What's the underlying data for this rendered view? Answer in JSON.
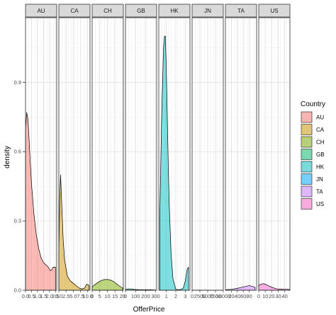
{
  "chart_data": {
    "type": "area",
    "kind": "faceted density plot",
    "xlabel": "OfferPrice",
    "ylabel": "density",
    "ylim": [
      0,
      1.18
    ],
    "y_ticks": [
      0.0,
      0.3,
      0.6,
      0.9
    ],
    "y_tick_labels": [
      "0.0",
      "0.3",
      "0.6",
      "0.9"
    ],
    "grid": true,
    "legend": {
      "title": "Country",
      "placement": "right",
      "entries": [
        "AU",
        "CA",
        "CH",
        "GB",
        "HK",
        "JN",
        "TA",
        "US"
      ]
    },
    "facets": [
      {
        "name": "AU",
        "color": "#F8766D",
        "xlim": [
          0,
          2.6
        ],
        "x_ticks": [
          0,
          0.5,
          1,
          1.5,
          2,
          2.5
        ],
        "x_tick_labels": [
          "0.0",
          "0.5",
          "1.0",
          "1.5",
          "2.0",
          "2.5"
        ],
        "x": [
          0,
          0.1,
          0.2,
          0.3,
          0.4,
          0.5,
          0.7,
          0.9,
          1.1,
          1.3,
          1.5,
          1.7,
          1.9,
          2.0,
          2.1,
          2.2,
          2.3,
          2.4,
          2.5
        ],
        "y": [
          0.7,
          0.77,
          0.74,
          0.65,
          0.55,
          0.46,
          0.33,
          0.24,
          0.18,
          0.14,
          0.12,
          0.11,
          0.1,
          0.09,
          0.085,
          0.09,
          0.1,
          0.1,
          0.1
        ]
      },
      {
        "name": "CA",
        "color": "#CD9600",
        "xlim": [
          0,
          10.8
        ],
        "x_ticks": [
          0,
          2.5,
          5,
          7.5,
          10
        ],
        "x_tick_labels": [
          "0.0",
          "2.5",
          "5.0",
          "7.5",
          "10.0"
        ],
        "x": [
          0,
          0.3,
          0.6,
          1.0,
          1.5,
          2.0,
          3.0,
          4.0,
          5.0,
          6.0,
          7.0,
          8.0,
          9.0,
          9.5,
          10.0,
          10.5
        ],
        "y": [
          0.15,
          0.4,
          0.5,
          0.38,
          0.22,
          0.13,
          0.06,
          0.04,
          0.03,
          0.02,
          0.01,
          0.005,
          0.01,
          0.025,
          0.025,
          0.02
        ]
      },
      {
        "name": "CH",
        "color": "#7CAE00",
        "xlim": [
          0,
          20.5
        ],
        "x_ticks": [
          0,
          5,
          10,
          15,
          20
        ],
        "x_tick_labels": [
          "0",
          "5",
          "10",
          "15",
          "20"
        ],
        "x": [
          0,
          2,
          4,
          6,
          8,
          10,
          12,
          14,
          16,
          18,
          20
        ],
        "y": [
          0.015,
          0.025,
          0.035,
          0.042,
          0.046,
          0.047,
          0.044,
          0.038,
          0.028,
          0.018,
          0.01
        ]
      },
      {
        "name": "GB",
        "color": "#00BE67",
        "xlim": [
          0,
          310
        ],
        "x_ticks": [
          0,
          100,
          200,
          300
        ],
        "x_tick_labels": [
          "0",
          "100",
          "200",
          "300"
        ],
        "x": [
          0,
          30,
          60,
          100,
          150,
          200,
          250,
          300
        ],
        "y": [
          0.004,
          0.006,
          0.005,
          0.003,
          0.002,
          0.002,
          0.002,
          0.001
        ]
      },
      {
        "name": "HK",
        "color": "#00BFC4",
        "xlim": [
          0.2,
          3.5
        ],
        "x_ticks": [
          1,
          2,
          3
        ],
        "x_tick_labels": [
          "1",
          "2",
          "3"
        ],
        "x": [
          0.3,
          0.5,
          0.7,
          0.8,
          0.9,
          1.0,
          1.1,
          1.2,
          1.3,
          1.5,
          1.7,
          2.0,
          2.3,
          2.6,
          2.8,
          3.0,
          3.2,
          3.35
        ],
        "y": [
          0.3,
          0.75,
          1.05,
          1.1,
          1.1,
          0.95,
          0.75,
          0.55,
          0.38,
          0.16,
          0.05,
          0.004,
          0.002,
          0.004,
          0.01,
          0.04,
          0.09,
          0.1
        ]
      },
      {
        "name": "JN",
        "color": "#00A9FF",
        "xlim": [
          0,
          10000
        ],
        "x_ticks": [
          0,
          2500,
          5000,
          7500,
          10000
        ],
        "x_tick_labels": [
          "0",
          "2500",
          "5000",
          "7500",
          "10000"
        ],
        "x": [
          0,
          2500,
          5000,
          7500,
          10000
        ],
        "y": [
          0.0003,
          0.0003,
          0.0002,
          0.0002,
          0.0001
        ]
      },
      {
        "name": "TA",
        "color": "#C77CFF",
        "xlim": [
          0,
          105
        ],
        "x_ticks": [
          20,
          40,
          60,
          80
        ],
        "x_tick_labels": [
          "20",
          "40",
          "60",
          "80"
        ],
        "x": [
          0,
          20,
          40,
          60,
          70,
          80,
          90,
          100
        ],
        "y": [
          0.002,
          0.004,
          0.008,
          0.014,
          0.017,
          0.02,
          0.017,
          0.012
        ]
      },
      {
        "name": "US",
        "color": "#FF61CC",
        "xlim": [
          0,
          48
        ],
        "x_ticks": [
          0,
          10,
          20,
          30,
          40
        ],
        "x_tick_labels": [
          "0",
          "10",
          "20",
          "30",
          "40"
        ],
        "x": [
          0,
          4,
          8,
          12,
          16,
          20,
          24,
          28,
          32,
          36,
          40,
          44,
          48
        ],
        "y": [
          0.02,
          0.027,
          0.028,
          0.024,
          0.018,
          0.013,
          0.009,
          0.006,
          0.005,
          0.005,
          0.004,
          0.004,
          0.003
        ]
      }
    ]
  }
}
